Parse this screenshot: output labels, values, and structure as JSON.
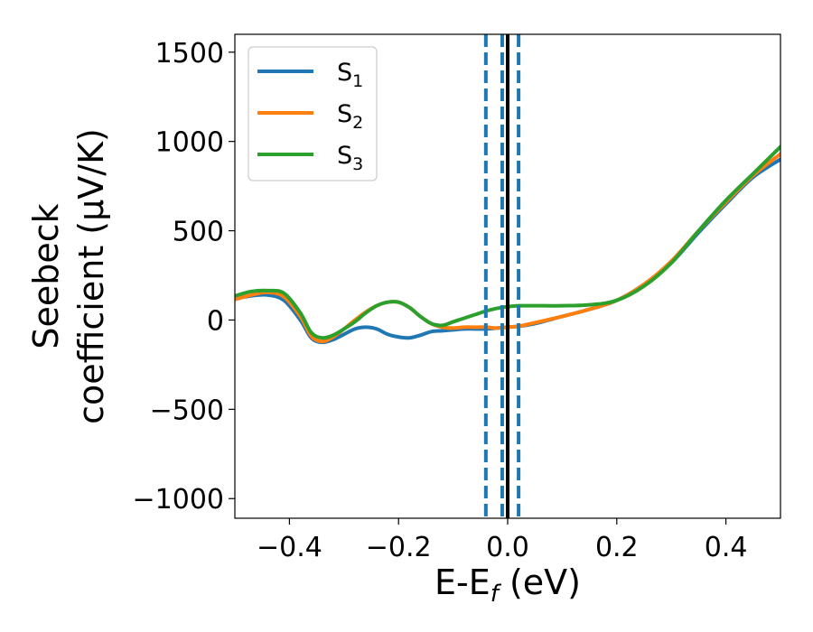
{
  "chart_data": {
    "type": "line",
    "title": "",
    "xlabel": "E-E_f (eV)",
    "ylabel_line1": "Seebeck",
    "ylabel_line2": "coefficient  (μV/K)",
    "xlim": [
      -0.5,
      0.5
    ],
    "ylim": [
      -1110,
      1600
    ],
    "xticks": [
      -0.4,
      -0.2,
      0.0,
      0.2,
      0.4
    ],
    "xtick_labels": [
      "−0.4",
      "−0.2",
      "0.0",
      "0.2",
      "0.4"
    ],
    "yticks": [
      -1000,
      -500,
      0,
      500,
      1000,
      1500
    ],
    "ytick_labels": [
      "−1000",
      "−500",
      "0",
      "500",
      "1000",
      "1500"
    ],
    "grid": false,
    "legend_position": "top-left",
    "vertical_lines": [
      {
        "x": 0.0,
        "style": "solid",
        "color": "#000000"
      },
      {
        "x": -0.04,
        "style": "dashed",
        "color": "#1f77b4"
      },
      {
        "x": -0.01,
        "style": "dashed",
        "color": "#1f77b4"
      },
      {
        "x": 0.02,
        "style": "dashed",
        "color": "#1f77b4"
      }
    ],
    "series": [
      {
        "name": "S",
        "subscript": "1",
        "color": "#1f77b4",
        "x": [
          -0.5,
          -0.47,
          -0.44,
          -0.41,
          -0.38,
          -0.36,
          -0.34,
          -0.32,
          -0.3,
          -0.28,
          -0.26,
          -0.24,
          -0.22,
          -0.2,
          -0.18,
          -0.16,
          -0.14,
          -0.12,
          -0.1,
          -0.08,
          -0.06,
          -0.04,
          -0.02,
          0.0,
          0.02,
          0.05,
          0.1,
          0.15,
          0.2,
          0.25,
          0.3,
          0.35,
          0.4,
          0.45,
          0.5
        ],
        "y": [
          120,
          135,
          140,
          110,
          0,
          -100,
          -125,
          -110,
          -80,
          -50,
          -40,
          -50,
          -80,
          -95,
          -100,
          -85,
          -65,
          -60,
          -55,
          -50,
          -50,
          -50,
          -45,
          -40,
          -35,
          -20,
          20,
          60,
          110,
          200,
          320,
          490,
          650,
          800,
          900
        ]
      },
      {
        "name": "S",
        "subscript": "2",
        "color": "#ff7f0e",
        "x": [
          -0.5,
          -0.47,
          -0.44,
          -0.41,
          -0.38,
          -0.36,
          -0.34,
          -0.32,
          -0.3,
          -0.28,
          -0.26,
          -0.24,
          -0.22,
          -0.2,
          -0.18,
          -0.16,
          -0.14,
          -0.12,
          -0.1,
          -0.08,
          -0.06,
          -0.04,
          -0.02,
          0.0,
          0.02,
          0.05,
          0.1,
          0.15,
          0.2,
          0.25,
          0.3,
          0.35,
          0.4,
          0.45,
          0.5
        ],
        "y": [
          115,
          140,
          155,
          130,
          20,
          -90,
          -120,
          -95,
          -50,
          0,
          45,
          80,
          100,
          100,
          70,
          20,
          -20,
          -40,
          -45,
          -40,
          -40,
          -40,
          -45,
          -40,
          -35,
          -15,
          20,
          60,
          110,
          200,
          330,
          500,
          660,
          810,
          930
        ]
      },
      {
        "name": "S",
        "subscript": "3",
        "color": "#2ca02c",
        "x": [
          -0.5,
          -0.47,
          -0.44,
          -0.41,
          -0.38,
          -0.36,
          -0.34,
          -0.32,
          -0.3,
          -0.28,
          -0.26,
          -0.24,
          -0.22,
          -0.2,
          -0.18,
          -0.16,
          -0.14,
          -0.12,
          -0.1,
          -0.08,
          -0.06,
          -0.04,
          -0.02,
          0.0,
          0.02,
          0.05,
          0.1,
          0.15,
          0.2,
          0.25,
          0.3,
          0.35,
          0.4,
          0.45,
          0.5
        ],
        "y": [
          135,
          160,
          165,
          150,
          40,
          -70,
          -100,
          -85,
          -50,
          -10,
          40,
          80,
          100,
          100,
          70,
          20,
          -20,
          -30,
          -10,
          10,
          30,
          50,
          65,
          75,
          80,
          80,
          80,
          85,
          110,
          190,
          320,
          500,
          670,
          820,
          970
        ]
      }
    ]
  }
}
